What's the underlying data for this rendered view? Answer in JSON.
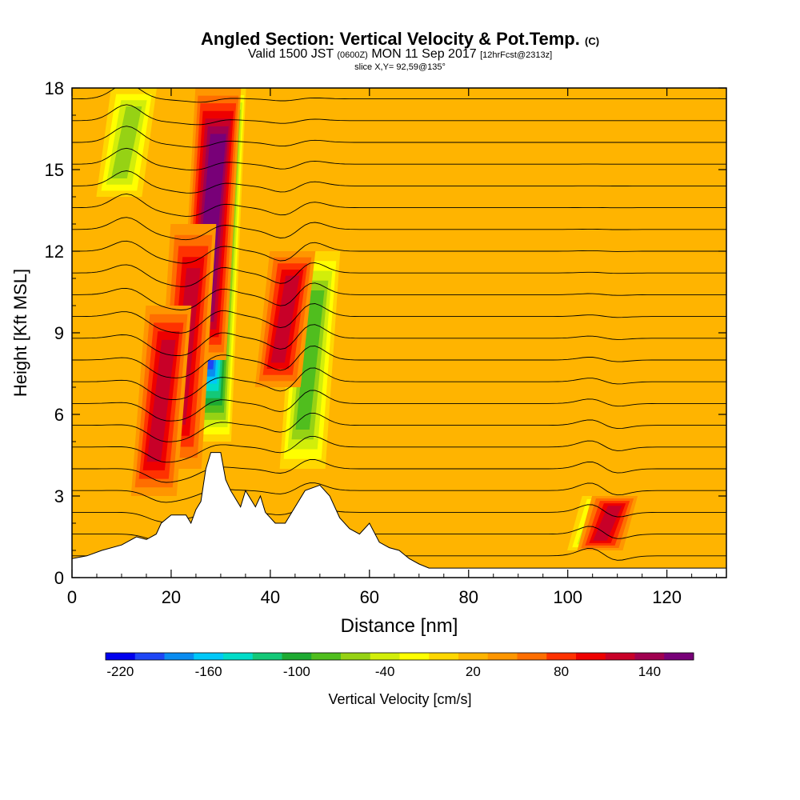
{
  "header": {
    "title_main": "Angled Section: Vertical Velocity & Pot.Temp.",
    "title_tag": "(C)",
    "valid_a": "Valid 1500 JST",
    "valid_b": "(0600Z)",
    "valid_c": "MON 11 Sep 2017",
    "valid_d": "[12hrFcst@2313z]",
    "slice": "slice X,Y= 92,59@135°"
  },
  "chart_data": {
    "type": "heatmap",
    "xlabel": "Distance [nm]",
    "ylabel": "Height [Kft MSL]",
    "xlim": [
      0,
      132
    ],
    "ylim": [
      0,
      18
    ],
    "x_ticks": [
      0,
      20,
      40,
      60,
      80,
      100,
      120
    ],
    "y_ticks": [
      0,
      3,
      6,
      9,
      12,
      15,
      18
    ],
    "colorbar": {
      "label": "Vertical Velocity [cm/s]",
      "tick_values": [
        -220,
        -160,
        -100,
        -40,
        20,
        80,
        140
      ],
      "range": [
        -230,
        170
      ],
      "colors": [
        "#0000ee",
        "#1e46f5",
        "#0a8cf0",
        "#00c8f8",
        "#00dcc8",
        "#14c878",
        "#1eaa32",
        "#50be1e",
        "#96d214",
        "#d2ee0a",
        "#ffff00",
        "#ffd700",
        "#ffb400",
        "#ff9600",
        "#ff6e00",
        "#ff3200",
        "#ee0000",
        "#c80028",
        "#a00050",
        "#780078"
      ]
    },
    "background_value": 20,
    "features": [
      {
        "type": "downdraft",
        "x": 29,
        "ybot": 5,
        "ytop": 18,
        "value": -220
      },
      {
        "type": "updraft",
        "x": 28,
        "ybot": 8,
        "ytop": 18,
        "value": 160
      },
      {
        "type": "updraft",
        "x": 23,
        "ybot": 4,
        "ytop": 13,
        "value": 100
      },
      {
        "type": "updraft",
        "x": 18,
        "ybot": 3,
        "ytop": 10,
        "value": 100
      },
      {
        "type": "downdraft",
        "x": 11,
        "ybot": 14,
        "ytop": 18,
        "value": -70
      },
      {
        "type": "downdraft",
        "x": 48,
        "ybot": 4,
        "ytop": 12,
        "value": -100
      },
      {
        "type": "updraft",
        "x": 43,
        "ybot": 7,
        "ytop": 12,
        "value": 90
      },
      {
        "type": "downdraft",
        "x": 106,
        "ybot": 1,
        "ytop": 3,
        "value": -80
      },
      {
        "type": "updraft",
        "x": 108,
        "ybot": 1,
        "ytop": 3,
        "value": 100
      }
    ],
    "theta_contour_heights": [
      0.8,
      1.6,
      2.4,
      3.2,
      4.0,
      4.8,
      5.6,
      6.4,
      7.2,
      8.0,
      8.8,
      9.6,
      10.4,
      11.2,
      12.0,
      12.8,
      13.6,
      14.4,
      15.2,
      16.0,
      16.8,
      17.6
    ],
    "terrain": [
      [
        0,
        0.7
      ],
      [
        3,
        0.8
      ],
      [
        6,
        1.0
      ],
      [
        10,
        1.2
      ],
      [
        13,
        1.5
      ],
      [
        15,
        1.4
      ],
      [
        17,
        1.6
      ],
      [
        18,
        2.0
      ],
      [
        20,
        2.3
      ],
      [
        23,
        2.3
      ],
      [
        24,
        2.0
      ],
      [
        25,
        2.5
      ],
      [
        26,
        2.8
      ],
      [
        27,
        4.0
      ],
      [
        28,
        4.6
      ],
      [
        30,
        4.6
      ],
      [
        31,
        3.6
      ],
      [
        32,
        3.2
      ],
      [
        34,
        2.6
      ],
      [
        35,
        3.2
      ],
      [
        37,
        2.6
      ],
      [
        38,
        3.0
      ],
      [
        39,
        2.4
      ],
      [
        41,
        2.0
      ],
      [
        43,
        2.0
      ],
      [
        45,
        2.6
      ],
      [
        47,
        3.2
      ],
      [
        50,
        3.4
      ],
      [
        52,
        3.0
      ],
      [
        54,
        2.2
      ],
      [
        56,
        1.8
      ],
      [
        58,
        1.6
      ],
      [
        60,
        2.0
      ],
      [
        62,
        1.3
      ],
      [
        64,
        1.1
      ],
      [
        66,
        1.0
      ],
      [
        68,
        0.7
      ],
      [
        70,
        0.5
      ],
      [
        72,
        0.35
      ],
      [
        132,
        0.35
      ]
    ]
  },
  "colors": {
    "contour": "#000000",
    "terrain": "#ffffff",
    "background": "#ffffff"
  }
}
